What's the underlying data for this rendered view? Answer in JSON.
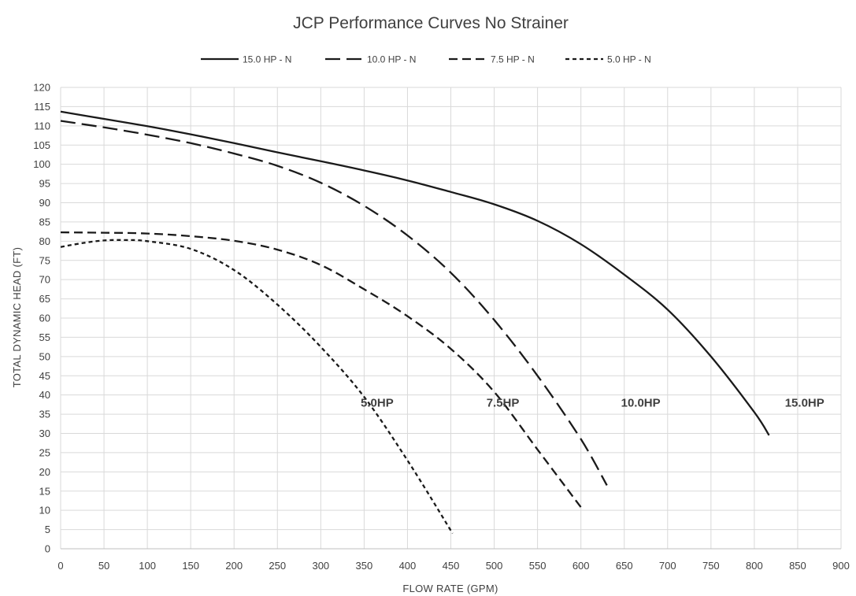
{
  "chart_data": {
    "type": "line",
    "title": "JCP Performance Curves No Strainer",
    "xlabel": "FLOW RATE  (GPM)",
    "ylabel": "TOTAL DYNAMIC HEAD (FT)",
    "xlim": [
      0,
      900
    ],
    "ylim": [
      0,
      120
    ],
    "xticks": [
      0,
      50,
      100,
      150,
      200,
      250,
      300,
      350,
      400,
      450,
      500,
      550,
      600,
      650,
      700,
      750,
      800,
      850,
      900
    ],
    "yticks": [
      0,
      5,
      10,
      15,
      20,
      25,
      30,
      35,
      40,
      45,
      50,
      55,
      60,
      65,
      70,
      75,
      80,
      85,
      90,
      95,
      100,
      105,
      110,
      115,
      120
    ],
    "grid": true,
    "legend_position": "top",
    "series": [
      {
        "name": "15.0 HP - N",
        "dash": "solid",
        "x": [
          0,
          50,
          100,
          150,
          200,
          250,
          300,
          350,
          400,
          450,
          500,
          550,
          600,
          650,
          700,
          750,
          800,
          817
        ],
        "y": [
          113.7,
          111.8,
          109.9,
          107.8,
          105.5,
          103.1,
          100.8,
          98.4,
          95.8,
          92.8,
          89.6,
          85.3,
          79.2,
          71.3,
          62.2,
          50.0,
          35.5,
          29.5
        ]
      },
      {
        "name": "10.0 HP - N",
        "dash": "long-dash",
        "x": [
          0,
          50,
          100,
          150,
          200,
          250,
          300,
          350,
          400,
          450,
          500,
          550,
          600,
          630
        ],
        "y": [
          111.3,
          109.6,
          107.7,
          105.5,
          102.8,
          99.6,
          95.2,
          89.2,
          81.5,
          71.8,
          59.5,
          45.0,
          28.5,
          16.5
        ]
      },
      {
        "name": "7.5 HP - N",
        "dash": "medium-dash",
        "x": [
          0,
          50,
          100,
          150,
          200,
          250,
          300,
          350,
          400,
          450,
          500,
          550,
          600
        ],
        "y": [
          82.3,
          82.2,
          82.0,
          81.3,
          80.1,
          77.8,
          73.8,
          67.5,
          60.5,
          52.0,
          40.8,
          25.8,
          10.8
        ]
      },
      {
        "name": "5.0 HP - N",
        "dash": "short-dash",
        "x": [
          0,
          25,
          50,
          75,
          100,
          150,
          200,
          250,
          300,
          350,
          400,
          452
        ],
        "y": [
          78.5,
          79.5,
          80.2,
          80.3,
          80.0,
          78.0,
          72.5,
          63.5,
          52.5,
          39.5,
          23.0,
          4.0
        ]
      }
    ],
    "annotations": [
      {
        "text": "5.0HP",
        "x": 365,
        "y": 38
      },
      {
        "text": "7.5HP",
        "x": 510,
        "y": 38
      },
      {
        "text": "10.0HP",
        "x": 669,
        "y": 38
      },
      {
        "text": "15.0HP",
        "x": 858,
        "y": 38
      }
    ]
  }
}
